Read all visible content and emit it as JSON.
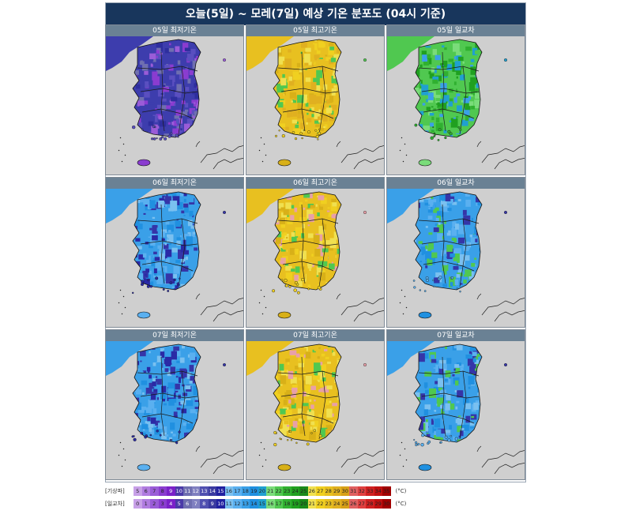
{
  "title": "오늘(5일) ~ 모레(7일) 예상 기온 분포도 (04시 기준)",
  "panels": [
    {
      "label": "05일 최저기온",
      "palette": "low_cold"
    },
    {
      "label": "05일 최고기온",
      "palette": "high_warm"
    },
    {
      "label": "05일 일교차",
      "palette": "range_mid"
    },
    {
      "label": "06일 최저기온",
      "palette": "low_mid"
    },
    {
      "label": "06일 최고기온",
      "palette": "high_hot"
    },
    {
      "label": "06일 일교차",
      "palette": "range_cool"
    },
    {
      "label": "07일 최저기온",
      "palette": "low_mid"
    },
    {
      "label": "07일 최고기온",
      "palette": "high_hot"
    },
    {
      "label": "07일 일교차",
      "palette": "range_cool"
    }
  ],
  "legend": {
    "temp": {
      "label": "[기상파]",
      "unit": "(°C)",
      "values": [
        "5",
        "6",
        "7",
        "8",
        "9",
        "10",
        "11",
        "12",
        "13",
        "14",
        "15",
        "16",
        "17",
        "18",
        "19",
        "20",
        "21",
        "22",
        "23",
        "24",
        "25",
        "26",
        "27",
        "28",
        "29",
        "30",
        "31",
        "32",
        "33",
        "34",
        "35"
      ]
    },
    "range": {
      "label": "[일교차]",
      "unit": "(°C)",
      "values": [
        "0",
        "1",
        "2",
        "3",
        "4",
        "5",
        "6",
        "7",
        "8",
        "9",
        "10",
        "11",
        "12",
        "13",
        "14",
        "15",
        "16",
        "17",
        "18",
        "19",
        "20",
        "21",
        "22",
        "23",
        "24",
        "25",
        "26",
        "27",
        "28",
        "29",
        "30"
      ]
    },
    "colors": [
      "#c8a0e8",
      "#b07ce0",
      "#9a5cd8",
      "#8a3cd0",
      "#7a20c8",
      "#4a3aa8",
      "#6f6fb0",
      "#8080c0",
      "#5050b0",
      "#3a3aa0",
      "#2020a0",
      "#7ac0f0",
      "#5ab0f0",
      "#3aa0e8",
      "#2090e0",
      "#20a0d0",
      "#7adc7a",
      "#50c850",
      "#30b030",
      "#20a020",
      "#1a8a1a",
      "#f0e050",
      "#f0d020",
      "#e8c020",
      "#e0b020",
      "#d8a018",
      "#e06060",
      "#e04040",
      "#d02020",
      "#c01010",
      "#a00000"
    ]
  },
  "colors": {
    "title_bg": "#18365c",
    "panel_head_bg": "#6a8194",
    "sea": "#cfcfcf"
  }
}
